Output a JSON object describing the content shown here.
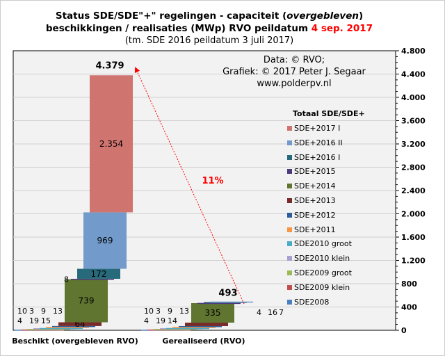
{
  "title": {
    "line1a": "Status SDE/SDE\"+\"  regelingen - capaciteit (",
    "line1b": "overgebleven",
    "line1c": ")",
    "line2a": "beschikkingen  / realisaties (MWp) RVO peildatum ",
    "line2b": "4 sep. 2017",
    "line3": "(tm. SDE 2016 peildatum 3 juli 2017)"
  },
  "credits": [
    "Data: © RVO;",
    "Grafiek:  © 2017 Peter J. Segaar",
    "www.polderpv.nl"
  ],
  "chart_data": {
    "type": "bar",
    "subtype": "stacked-waterfall",
    "categories": [
      "Beschikt (overgebleven RVO)",
      "Gerealiseerd (RVO)"
    ],
    "ylim": [
      0,
      4800
    ],
    "yticks": [
      0,
      400,
      800,
      1200,
      1600,
      2000,
      2400,
      2800,
      3200,
      3600,
      4000,
      4400,
      4800
    ],
    "ytick_labels": [
      "0",
      "400",
      "800",
      "1.200",
      "1.600",
      "2.000",
      "2.400",
      "2.800",
      "3.200",
      "3.600",
      "4.000",
      "4.400",
      "4.800"
    ],
    "grid": true,
    "legend_title": "Totaal SDE/SDE+",
    "legend_position": "right",
    "series": [
      {
        "name": "SDE2008",
        "color": "#4a7fc0",
        "values": [
          10,
          10
        ]
      },
      {
        "name": "SDE2009 klein",
        "color": "#c0504d",
        "values": [
          3,
          3
        ]
      },
      {
        "name": "SDE2009 groot",
        "color": "#9bbb59",
        "values": [
          9,
          9
        ]
      },
      {
        "name": "SDE2010 klein",
        "color": "#a9a0d0",
        "values": [
          13,
          13
        ]
      },
      {
        "name": "SDE2010 groot",
        "color": "#4bacc6",
        "values": [
          4,
          4
        ]
      },
      {
        "name": "SDE+2011",
        "color": "#f79646",
        "values": [
          19,
          19
        ]
      },
      {
        "name": "SDE+2012",
        "color": "#2c5d9a",
        "values": [
          15,
          14
        ]
      },
      {
        "name": "SDE+2013",
        "color": "#772c2a",
        "values": [
          64,
          59
        ]
      },
      {
        "name": "SDE+2014",
        "color": "#5f7530",
        "values": [
          739,
          335
        ]
      },
      {
        "name": "SDE+2015",
        "color": "#4d3b7c",
        "values": [
          8,
          4
        ]
      },
      {
        "name": "SDE+2016 I",
        "color": "#276a7c",
        "values": [
          172,
          16
        ]
      },
      {
        "name": "SDE+2016 II",
        "color": "#729aca",
        "values": [
          969,
          7
        ]
      },
      {
        "name": "SDE+2017 I",
        "color": "#d07470",
        "values": [
          2354,
          0
        ]
      }
    ],
    "bar_labels": [
      [
        "10",
        "3",
        "9",
        "13",
        "4",
        "19",
        "15",
        "64",
        "739",
        "8",
        "172",
        "969",
        "2.354"
      ],
      [
        "10",
        "3",
        "9",
        "13",
        "4",
        "19",
        "14",
        "59",
        "335",
        "4",
        "16",
        "7",
        ""
      ]
    ],
    "totals": [
      "4.379",
      "493"
    ],
    "annotation": "11%"
  }
}
